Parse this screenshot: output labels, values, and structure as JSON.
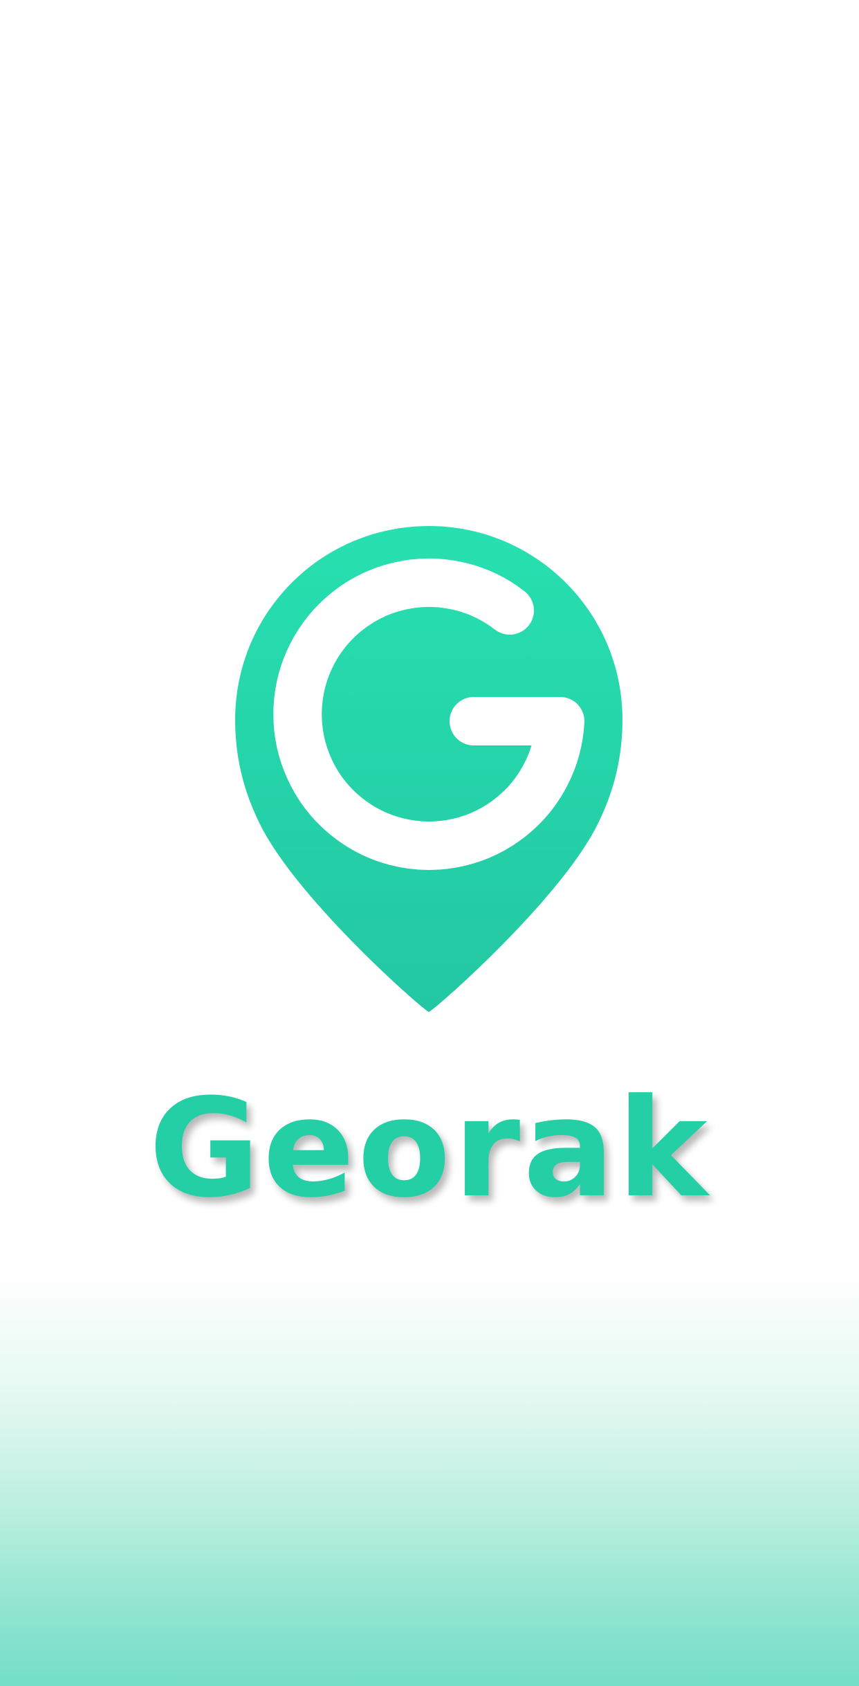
{
  "splash": {
    "app_name": "Georak",
    "logo_icon": "map-pin-g-icon",
    "colors": {
      "brand": "#25cfa6",
      "brand_light": "#27e0b0",
      "brand_dark": "#23c7a3",
      "background": "#ffffff",
      "bottom_gradient": "#74dec6"
    }
  }
}
